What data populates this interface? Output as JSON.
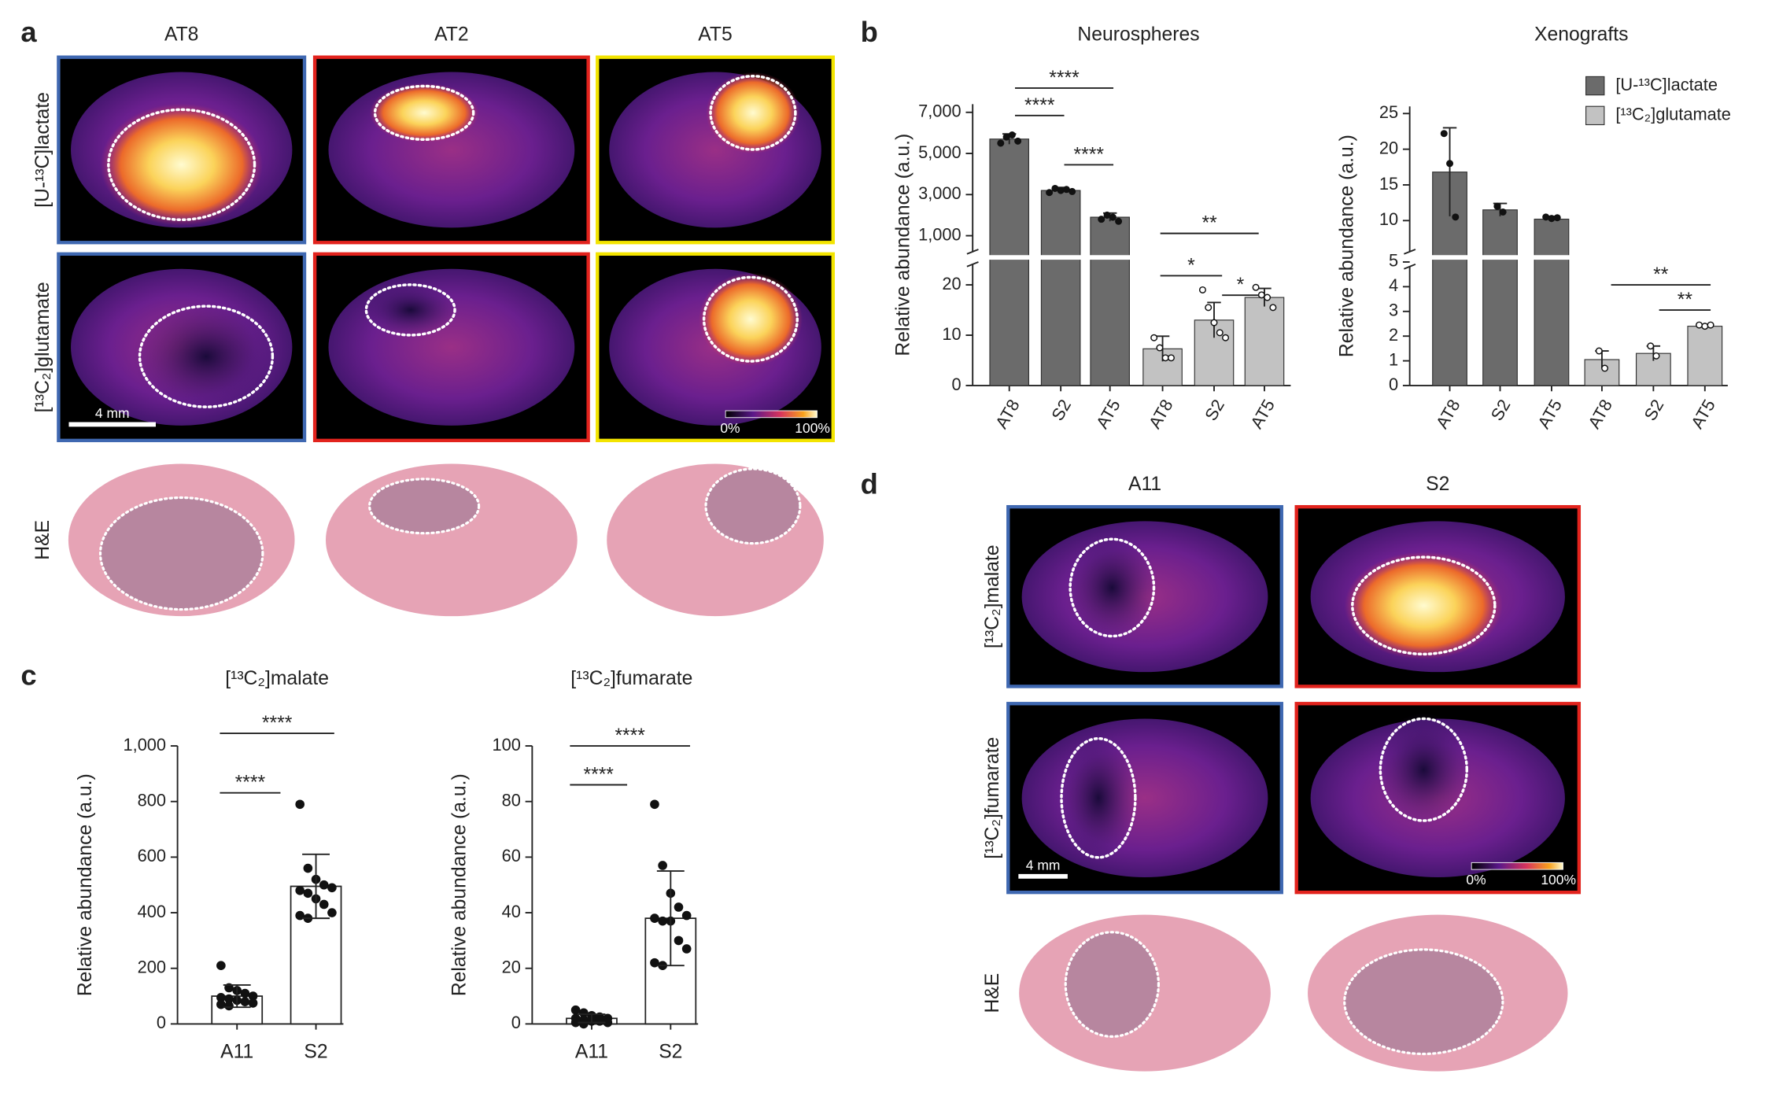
{
  "panel_labels": [
    "a",
    "b",
    "c",
    "d"
  ],
  "panel_a": {
    "columns": [
      "AT8",
      "AT2",
      "AT5"
    ],
    "rows": [
      "[U-¹³C]lactate",
      "[¹³C₂]glutamate",
      "H&E"
    ],
    "scale_bar": "4 mm",
    "colorbar": [
      "0%",
      "100%"
    ]
  },
  "panel_d": {
    "columns": [
      "A11",
      "S2"
    ],
    "rows": [
      "[¹³C₂]malate",
      "[¹³C₂]fumarate",
      "H&E"
    ],
    "scale_bar": "4 mm",
    "colorbar": [
      "0%",
      "100%"
    ]
  },
  "chart_data": [
    {
      "type": "broken-bar",
      "title": "Neurospheres",
      "ylabel": "Relative abundance (a.u.)",
      "categories": [
        "AT8",
        "S2",
        "AT5",
        "AT8",
        "S2",
        "AT5"
      ],
      "series": [
        {
          "color": "#6b6b6b",
          "values": [
            5700,
            3200,
            1900,
            null,
            null,
            null
          ],
          "errors": [
            250,
            150,
            200,
            null,
            null,
            null
          ],
          "points": [
            [
              5500,
              5800,
              5900,
              5600
            ],
            [
              3100,
              3300,
              3200,
              3250,
              3150
            ],
            [
              1800,
              2000,
              1900,
              1700
            ],
            null,
            null,
            null
          ]
        },
        {
          "color": "#c2c2c2",
          "values": [
            null,
            null,
            null,
            7.3,
            13,
            17.5
          ],
          "errors": [
            null,
            null,
            null,
            2.5,
            3.5,
            1.8
          ],
          "points": [
            null,
            null,
            null,
            [
              9.5,
              7.5,
              5.5,
              5.5
            ],
            [
              19,
              15.5,
              12.5,
              10.5,
              9.5
            ],
            [
              19.5,
              18,
              17.5,
              15.5
            ]
          ]
        }
      ],
      "ylim": [
        0,
        25
      ],
      "yticks": [
        0,
        10,
        20
      ],
      "y_upper_lim": [
        0,
        7400
      ],
      "y_upper_ticks": [
        {
          "value": 1000,
          "label": "1,000"
        },
        {
          "value": 3000,
          "label": "3,000"
        },
        {
          "value": 5000,
          "label": "5,000"
        },
        {
          "value": 7000,
          "label": "7,000"
        }
      ],
      "annotations": [
        "****",
        "****",
        "****",
        "**",
        "*",
        "*"
      ]
    },
    {
      "type": "broken-bar",
      "title": "Xenografts",
      "ylabel": "Relative abundance (a.u.)",
      "categories": [
        "AT8",
        "S2",
        "AT5",
        "AT8",
        "S2",
        "AT5"
      ],
      "series": [
        {
          "name": "[U-¹³C]lactate",
          "color": "#6b6b6b",
          "values": [
            16.8,
            11.5,
            10.2,
            null,
            null,
            null
          ],
          "errors": [
            6.2,
            0.9,
            0.4,
            null,
            null,
            null
          ],
          "points": [
            [
              22.2,
              18,
              10.5
            ],
            [
              12,
              11.2
            ],
            [
              10.5,
              10.3,
              10.4
            ],
            null,
            null,
            null
          ]
        },
        {
          "name": "[¹³C₂]glutamate",
          "color": "#c2c2c2",
          "values": [
            null,
            null,
            null,
            1.05,
            1.3,
            2.4
          ],
          "errors": [
            null,
            null,
            null,
            0.35,
            0.3,
            0.05
          ],
          "points": [
            null,
            null,
            null,
            [
              1.4,
              0.7
            ],
            [
              1.6,
              1.2
            ],
            [
              2.45,
              2.4,
              2.45
            ]
          ]
        }
      ],
      "ylim": [
        0,
        5
      ],
      "yticks": [
        0,
        1,
        2,
        3,
        4,
        5
      ],
      "y_upper_lim": [
        5,
        26
      ],
      "y_upper_ticks": [
        10,
        15,
        20,
        25
      ],
      "legend": "upper-right",
      "annotations": [
        "**",
        "**"
      ]
    },
    {
      "type": "dot-bar",
      "title": "[¹³C₂]malate",
      "ylabel": "Relative abundance (a.u.)",
      "categories": [
        "A11",
        "S2"
      ],
      "values": [
        100,
        495
      ],
      "errors": [
        40,
        115
      ],
      "points": [
        [
          210,
          130,
          120,
          110,
          100,
          95,
          90,
          85,
          80,
          75,
          70,
          65
        ],
        [
          790,
          560,
          520,
          500,
          490,
          480,
          470,
          450,
          430,
          400,
          390,
          380
        ]
      ],
      "ylim": [
        0,
        1000
      ],
      "yticks": [
        0,
        200,
        400,
        600,
        800,
        {
          "value": 1000,
          "label": "1,000"
        }
      ],
      "annotations": [
        "****",
        "****"
      ]
    },
    {
      "type": "dot-bar",
      "title": "[¹³C₂]fumarate",
      "ylabel": "Relative abundance (a.u.)",
      "categories": [
        "A11",
        "S2"
      ],
      "values": [
        2,
        38
      ],
      "errors": [
        1.5,
        17
      ],
      "points": [
        [
          5,
          4,
          3,
          2.5,
          2,
          2,
          1.5,
          1,
          1,
          0.5,
          0.5,
          0
        ],
        [
          79,
          57,
          47,
          42,
          39,
          38,
          37,
          37,
          30,
          27,
          22,
          21
        ]
      ],
      "ylim": [
        0,
        100
      ],
      "yticks": [
        0,
        20,
        40,
        60,
        80,
        100
      ],
      "annotations": [
        "****",
        "****"
      ]
    }
  ]
}
